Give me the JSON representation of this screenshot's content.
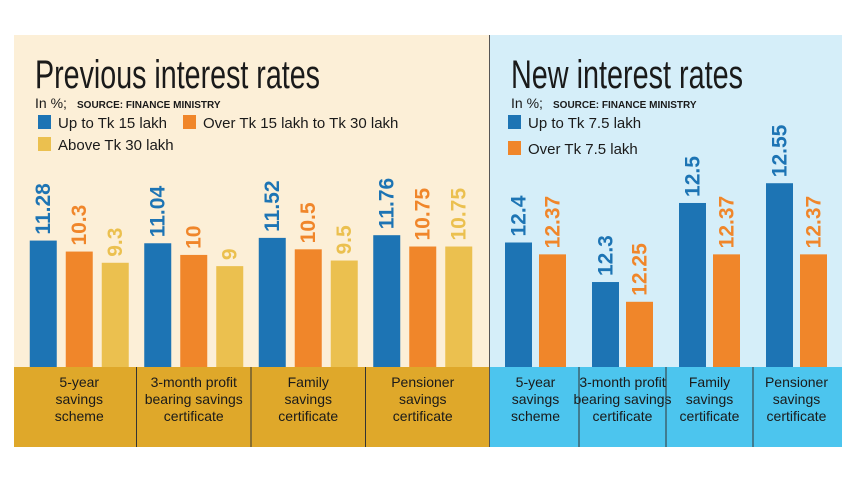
{
  "chart_data": [
    {
      "type": "bar",
      "title": "Previous interest rates",
      "subtitle": "In %;",
      "source": "SOURCE: FINANCE MINISTRY",
      "categories": [
        [
          "5-year",
          "savings",
          "scheme"
        ],
        [
          "3-month profit",
          "bearing savings",
          "certificate"
        ],
        [
          "Family",
          "savings",
          "certificate"
        ],
        [
          "Pensioner",
          "savings",
          "certificate"
        ]
      ],
      "series": [
        {
          "name": "Up to Tk 15 lakh",
          "color": "#1d74b4",
          "values": [
            11.28,
            11.04,
            11.52,
            11.76
          ]
        },
        {
          "name": "Over Tk 15 lakh to Tk 30 lakh",
          "color": "#f0862a",
          "values": [
            10.3,
            10,
            10.5,
            10.75
          ]
        },
        {
          "name": "Above Tk 30 lakh",
          "color": "#ebc04f",
          "values": [
            9.3,
            9,
            9.5,
            10.75
          ]
        }
      ],
      "ylim": [
        0,
        20.7
      ],
      "background": "#fcefd7",
      "band_color": "#dfa82a"
    },
    {
      "type": "bar",
      "title": "New interest rates",
      "subtitle": "In %;",
      "source": "SOURCE: FINANCE MINISTRY",
      "categories": [
        [
          "5-year",
          "savings",
          "scheme"
        ],
        [
          "3-month profit",
          "bearing savings",
          "certificate"
        ],
        [
          "Family",
          "savings",
          "certificate"
        ],
        [
          "Pensioner",
          "savings",
          "certificate"
        ]
      ],
      "series": [
        {
          "name": "Up to Tk 7.5 lakh",
          "color": "#1d74b4",
          "values": [
            12.4,
            12.3,
            12.5,
            12.55
          ]
        },
        {
          "name": "Over Tk 7.5 lakh",
          "color": "#f0862a",
          "values": [
            12.37,
            12.25,
            12.37,
            12.37
          ]
        }
      ],
      "ylim": [
        12.085,
        12.672
      ],
      "background": "#d5eef9",
      "band_color": "#4cc5ee"
    }
  ]
}
